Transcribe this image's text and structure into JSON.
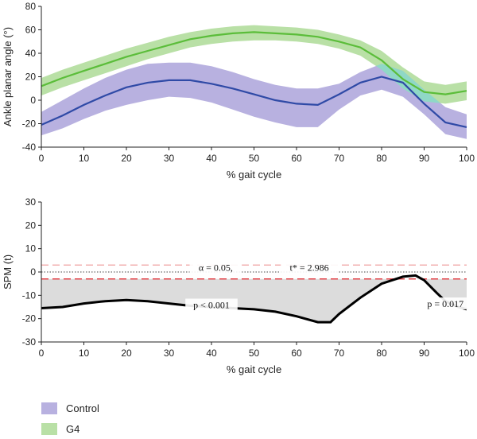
{
  "colors": {
    "control_band": "#b8b1e0",
    "control_line": "#2f4aa6",
    "g4_band": "#b9e0a6",
    "g4_line": "#5bbd3a",
    "overlap_band": "#8fd8c6",
    "threshold": "#e3444a",
    "spm_line": "#000000",
    "spm_fill": "#dcdcdc"
  },
  "legend": [
    {
      "label": "Control",
      "color": "#b8b1e0"
    },
    {
      "label": "G4",
      "color": "#b9e0a6"
    }
  ],
  "chart_data": [
    {
      "type": "line",
      "title": "",
      "xlabel": "% gait cycle",
      "ylabel": "Ankle planar angle (°)",
      "xlim": [
        0,
        100
      ],
      "ylim": [
        -40,
        80
      ],
      "xticks": [
        0,
        10,
        20,
        30,
        40,
        50,
        60,
        70,
        80,
        90,
        100
      ],
      "yticks": [
        -40,
        -20,
        0,
        20,
        40,
        60,
        80
      ],
      "grid": false,
      "x": [
        0,
        5,
        10,
        15,
        20,
        25,
        30,
        35,
        40,
        45,
        50,
        55,
        60,
        65,
        70,
        75,
        80,
        85,
        90,
        95,
        100
      ],
      "series": [
        {
          "name": "Control",
          "mean": [
            -21,
            -13,
            -4,
            4,
            11,
            15,
            17,
            17,
            14,
            10,
            5,
            0,
            -3,
            -4,
            5,
            15,
            20,
            15,
            -3,
            -19,
            -23
          ],
          "upper": [
            -10,
            0,
            10,
            19,
            26,
            31,
            32,
            32,
            29,
            24,
            18,
            13,
            10,
            10,
            14,
            24,
            31,
            25,
            9,
            -6,
            -12
          ],
          "lower": [
            -30,
            -24,
            -16,
            -9,
            -4,
            0,
            3,
            2,
            -2,
            -8,
            -14,
            -19,
            -23,
            -23,
            -8,
            4,
            9,
            3,
            -12,
            -29,
            -33
          ]
        },
        {
          "name": "G4",
          "mean": [
            12,
            19,
            25,
            31,
            37,
            42,
            47,
            52,
            55,
            57,
            58,
            57,
            56,
            54,
            50,
            45,
            34,
            18,
            7,
            5,
            8
          ],
          "upper": [
            19,
            26,
            32,
            38,
            44,
            49,
            54,
            58,
            61,
            63,
            64,
            63,
            62,
            60,
            56,
            51,
            42,
            28,
            16,
            13,
            16
          ],
          "lower": [
            4,
            11,
            17,
            23,
            29,
            35,
            40,
            45,
            48,
            50,
            51,
            51,
            50,
            48,
            44,
            38,
            26,
            10,
            -1,
            -3,
            0
          ]
        }
      ]
    },
    {
      "type": "line",
      "title": "",
      "xlabel": "% gait cycle",
      "ylabel": "SPM (t)",
      "xlim": [
        0,
        100
      ],
      "ylim": [
        -30,
        30
      ],
      "xticks": [
        0,
        10,
        20,
        30,
        40,
        50,
        60,
        70,
        80,
        90,
        100
      ],
      "yticks": [
        -30,
        -20,
        -10,
        0,
        10,
        20,
        30
      ],
      "grid": false,
      "threshold_upper": 2.986,
      "threshold_lower": -2.986,
      "x": [
        0,
        5,
        10,
        15,
        20,
        25,
        30,
        35,
        40,
        45,
        50,
        55,
        60,
        65,
        68,
        70,
        75,
        80,
        85,
        88,
        90,
        93,
        95,
        98,
        100
      ],
      "series": [
        {
          "name": "SPM",
          "values": [
            -15.5,
            -15,
            -13.5,
            -12.5,
            -12,
            -12.5,
            -13.5,
            -14.5,
            -15,
            -15.5,
            -16,
            -17,
            -19,
            -21.5,
            -21.5,
            -18,
            -11,
            -5,
            -2,
            -1.5,
            -3.5,
            -9,
            -12.5,
            -15,
            -16
          ]
        }
      ],
      "annotations": [
        {
          "label": "α = 0.05,",
          "x": 41,
          "y": 1.5
        },
        {
          "label": "t* = 2.986",
          "x": 63,
          "y": 1.5
        },
        {
          "label": "p < 0.001",
          "x": 40,
          "y": -14.5
        },
        {
          "label": "p = 0.017",
          "x": 95,
          "y": -14
        }
      ]
    }
  ]
}
